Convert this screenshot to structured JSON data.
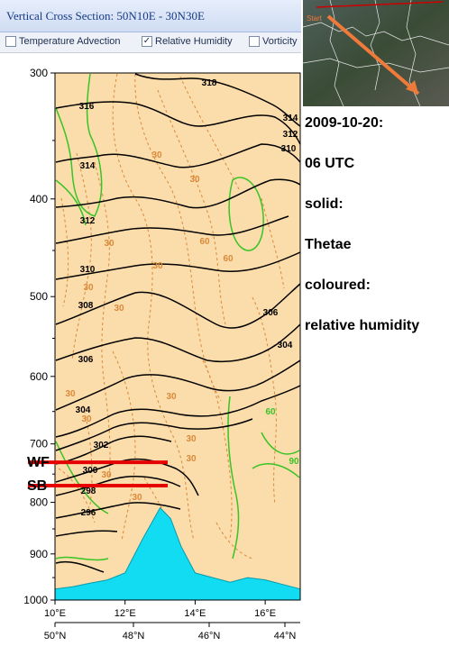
{
  "header": {
    "title": "Vertical Cross Section: 50N10E - 30N30E"
  },
  "checkboxes": [
    {
      "label": "Temperature Advection",
      "checked": false
    },
    {
      "label": "Relative Humidity",
      "checked": true
    },
    {
      "label": "Vorticity",
      "checked": false
    }
  ],
  "map": {
    "start_label": "Start",
    "track_color": "#f07a3a"
  },
  "notes": [
    "2009-10-20:",
    "06 UTC",
    "solid:",
    "Thetae",
    "coloured:",
    "relative humidity"
  ],
  "colors": {
    "background": "#fbdcab",
    "theta_lines": "#000000",
    "rh_dashed": "#d98a3a",
    "rh_high": "#37c425",
    "terrain": "#11dcf2",
    "front_lines": "#e60000"
  },
  "chart_data": {
    "type": "line",
    "xlabel": "",
    "ylabel": "",
    "y_axis": {
      "ticks": [
        300,
        400,
        500,
        600,
        700,
        800,
        900,
        1000
      ],
      "scale": "log",
      "range": [
        300,
        1000
      ],
      "reversed": true
    },
    "x_axis_lon": {
      "ticks": [
        "10°E",
        "12°E",
        "14°E",
        "16°E"
      ],
      "range": [
        10,
        17
      ]
    },
    "x_axis_lat": {
      "ticks": [
        "50°N",
        "48°N",
        "46°N",
        "44°N"
      ]
    },
    "front_annotations": [
      {
        "label": "WF",
        "pressure": 730
      },
      {
        "label": "SB",
        "pressure": 770
      }
    ],
    "theta_contour_labels": [
      "318",
      "316",
      "314",
      "314",
      "312",
      "312",
      "310",
      "310",
      "308",
      "306",
      "306",
      "304",
      "304",
      "302",
      "300",
      "298",
      "296"
    ],
    "rh_contour_labels": [
      "30",
      "30",
      "30",
      "30",
      "60",
      "60",
      "30",
      "30",
      "30",
      "30",
      "30",
      "30",
      "30",
      "90",
      "30",
      "30",
      "60"
    ],
    "terrain": {
      "lon": [
        10.0,
        10.5,
        11.0,
        11.5,
        12.0,
        12.5,
        13.0,
        13.3,
        13.6,
        14.0,
        14.5,
        15.0,
        15.5,
        16.0,
        16.5,
        17.0
      ],
      "pressure": [
        975,
        970,
        962,
        955,
        940,
        870,
        810,
        830,
        885,
        940,
        950,
        960,
        950,
        955,
        965,
        975
      ]
    }
  }
}
